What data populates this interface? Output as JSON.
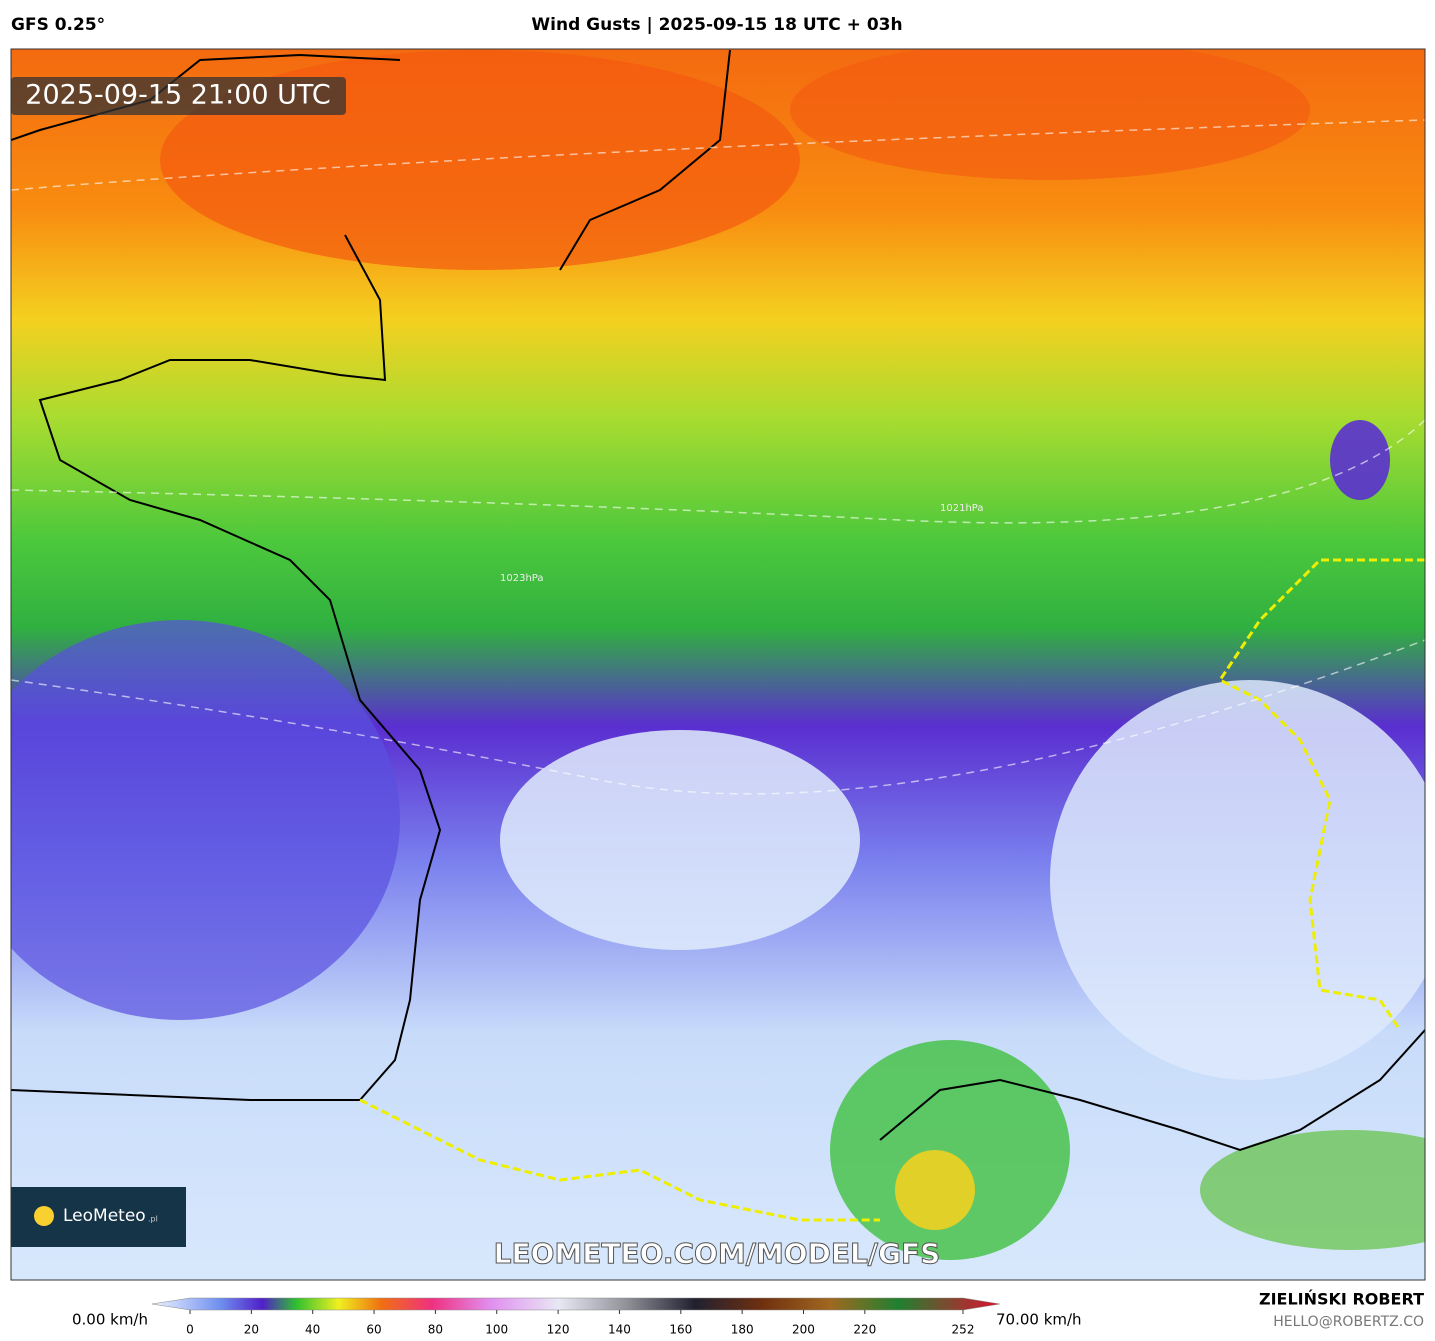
{
  "header": {
    "model": "GFS 0.25°",
    "title": "Wind Gusts | 2025-09-15 18 UTC + 03h"
  },
  "map": {
    "valid_time": "2025-09-15 21:00 UTC",
    "watermark": "LEOMETEO.COM/MODEL/GFS",
    "logo": "LeoMeteo",
    "logo_suffix": ".pl",
    "isobar_labels": [
      "1023hPa",
      "1021hPa"
    ]
  },
  "colorbar": {
    "min_label": "0.00 km/h",
    "max_label": "70.00 km/h",
    "ticks": [
      0,
      20,
      40,
      60,
      80,
      100,
      120,
      140,
      160,
      180,
      200,
      220,
      252
    ]
  },
  "footer": {
    "author": "ZIELIŃSKI ROBERT",
    "email": "HELLO@ROBERTZ.CO"
  }
}
